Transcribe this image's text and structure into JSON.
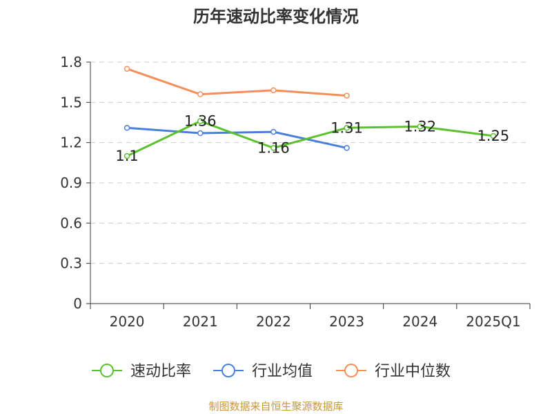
{
  "chart_data": {
    "type": "line",
    "title": "历年速动比率变化情况",
    "categories": [
      "2020",
      "2021",
      "2022",
      "2023",
      "2024",
      "2025Q1"
    ],
    "ylim": [
      0,
      1.8
    ],
    "yticks": [
      0,
      0.3,
      0.6,
      0.9,
      1.2,
      1.5,
      1.8
    ],
    "ytick_labels": [
      "0",
      "0.3",
      "0.6",
      "0.9",
      "1.2",
      "1.5",
      "1.8"
    ],
    "grid": true,
    "legend_position": "bottom",
    "series": [
      {
        "name": "速动比率",
        "color": "#5bc22d",
        "values": [
          1.1,
          1.36,
          1.16,
          1.31,
          1.32,
          1.25
        ],
        "labels": [
          "1.1",
          "1.36",
          "1.16",
          "1.31",
          "1.32",
          "1.25"
        ]
      },
      {
        "name": "行业均值",
        "color": "#4a7fdc",
        "values": [
          1.31,
          1.27,
          1.28,
          1.16,
          null,
          null
        ]
      },
      {
        "name": "行业中位数",
        "color": "#f58f57",
        "values": [
          1.75,
          1.56,
          1.59,
          1.55,
          null,
          null
        ]
      }
    ]
  },
  "source": "制图数据来自恒生聚源数据库"
}
